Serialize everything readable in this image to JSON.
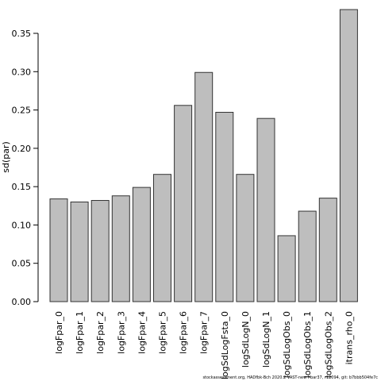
{
  "chart_data": {
    "type": "bar",
    "xlabel": "",
    "ylabel": "sd(par)",
    "ylim": [
      0,
      0.38
    ],
    "yticks": [
      0.0,
      0.05,
      0.1,
      0.15,
      0.2,
      0.25,
      0.3,
      0.35
    ],
    "ytick_labels": [
      "0.00",
      "0.05",
      "0.10",
      "0.15",
      "0.20",
      "0.25",
      "0.30",
      "0.35"
    ],
    "categories": [
      "logFpar_0",
      "logFpar_1",
      "logFpar_2",
      "logFpar_3",
      "logFpar_4",
      "logFpar_5",
      "logFpar_6",
      "logFpar_7",
      "logSdLogFsta_0",
      "logSdLogN_0",
      "logSdLogN_1",
      "logSdLogObs_0",
      "logSdLogObs_1",
      "logSdLogObs_2",
      "itrans_rho_0"
    ],
    "values": [
      0.134,
      0.13,
      0.132,
      0.138,
      0.149,
      0.166,
      0.256,
      0.299,
      0.247,
      0.166,
      0.239,
      0.086,
      0.118,
      0.135,
      0.381
    ],
    "bar_color": "#bebebe",
    "bar_edge": "#333333",
    "grid": false
  },
  "footer": "stockassessment.org, HADfbk-Bch 2020.2 VAST-new f-bar37, r12094, git: b7bbb504fe7c"
}
